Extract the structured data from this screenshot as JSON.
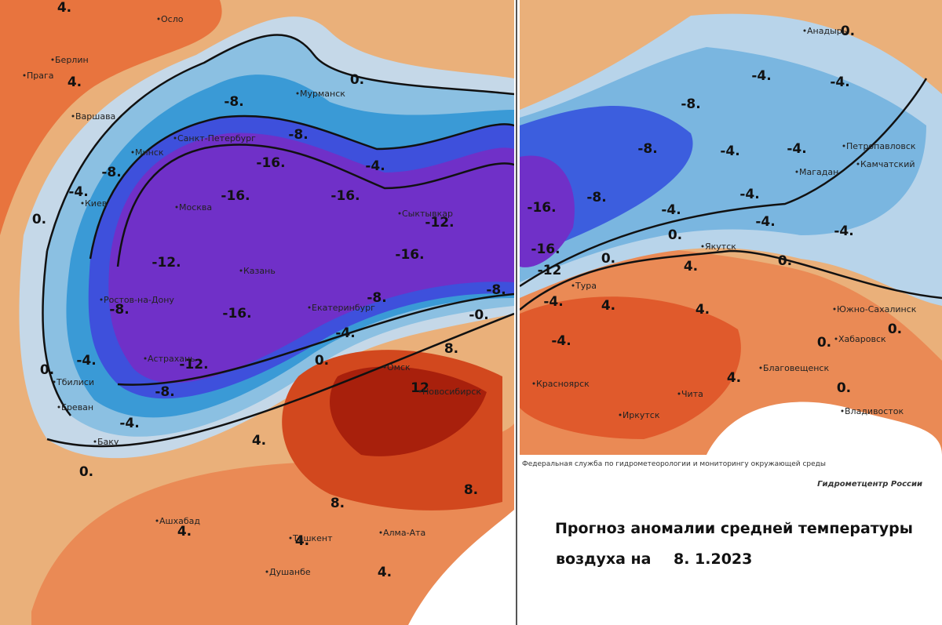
{
  "maps": [
    {
      "cities": [
        "Осло",
        "Берлин",
        "Прага",
        "Варшава",
        "Минск",
        "Киев",
        "Москва",
        "Санкт-Петербург",
        "Мурманск",
        "Казань",
        "Сыктывкар",
        "Ростов-на-Дону",
        "Екатеринбург",
        "Астрахань",
        "Тбилиси",
        "Ереван",
        "Баку",
        "Омск",
        "Новосибирск",
        "Ашхабад",
        "Ташкент",
        "Алма-Ата",
        "Душанбе"
      ],
      "contour_labels": [
        "4.",
        "4.",
        "0.",
        "-8.",
        "-8.",
        "-8.",
        "-16.",
        "-4.",
        "-4.",
        "-16.",
        "-16.",
        "0.",
        "-12.",
        "-16.",
        "-12.",
        "-8.",
        "-8.",
        "-8.",
        "-16.",
        "-0.",
        "-4.",
        "-4.",
        "0.",
        "-12.",
        "8.",
        "12",
        "0.",
        "-8.",
        "-4.",
        "4.",
        "0.",
        "8.",
        "8.",
        "4.",
        "4.",
        "4."
      ]
    },
    {
      "cities": [
        "Анадырь",
        "Петропавловск",
        "Камчатский",
        "Магадан",
        "Якутск",
        "Тура",
        "Южно-Сахалинск",
        "Хабаровск",
        "Благовещенск",
        "Красноярск",
        "Чита",
        "Иркутск",
        "Владивосток"
      ],
      "contour_labels": [
        "0.",
        "-4.",
        "-4.",
        "-8.",
        "-8.",
        "-4.",
        "-4.",
        "-4.",
        "-16.",
        "-8.",
        "-4.",
        "-4.",
        "-4.",
        "0.",
        "-16.",
        "0.",
        "-12",
        "0.",
        "4.",
        "-4.",
        "4.",
        "4.",
        "-4.",
        "0.",
        "0.",
        "4.",
        "0."
      ]
    }
  ],
  "footer": {
    "agency": "Федеральная служба по гидрометеорологии и мониторингу окружающей среды",
    "center": "Гидрометцентр России"
  },
  "title": {
    "line1": "Прогноз аномалии средней температуры",
    "line2": "воздуха на",
    "date": "8. 1.2023"
  }
}
